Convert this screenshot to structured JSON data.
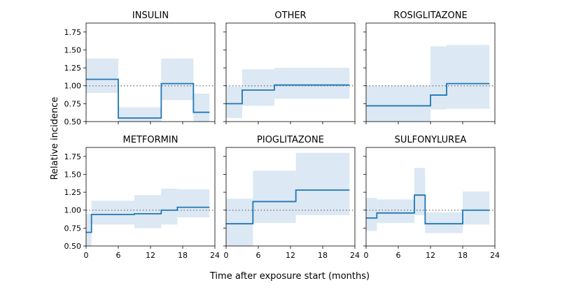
{
  "chart_data": {
    "type": "line",
    "step": true,
    "xlabel": "Time after exposure start (months)",
    "ylabel": "Relative incidence",
    "xlim": [
      0,
      24
    ],
    "ylim": [
      0.5,
      1.875
    ],
    "xticks": [
      0,
      6,
      12,
      18,
      24
    ],
    "xtick_labels": [
      "0",
      "6",
      "12",
      "18",
      "24"
    ],
    "yticks": [
      0.5,
      0.75,
      1.0,
      1.25,
      1.5,
      1.75
    ],
    "ytick_labels": [
      "0.50",
      "0.75",
      "1.00",
      "1.25",
      "1.50",
      "1.75"
    ],
    "reference_line": 1.0,
    "line_color": "#1f77b4",
    "band_color": "#dce8f4",
    "reference_color": "#808080",
    "panels": [
      {
        "title": "INSULIN",
        "segments": [
          {
            "x0": 0,
            "x1": 6,
            "value": 1.09,
            "lo": 0.9,
            "hi": 1.38
          },
          {
            "x0": 6,
            "x1": 14,
            "value": 0.55,
            "lo": 0.5,
            "hi": 0.7
          },
          {
            "x0": 14,
            "x1": 16,
            "value": 1.03,
            "lo": 0.8,
            "hi": 1.38
          },
          {
            "x0": 16,
            "x1": 20,
            "value": 1.03,
            "lo": 0.8,
            "hi": 1.38
          },
          {
            "x0": 20,
            "x1": 23,
            "value": 0.63,
            "lo": 0.5,
            "hi": 0.89
          }
        ]
      },
      {
        "title": "OTHER",
        "segments": [
          {
            "x0": 0,
            "x1": 3,
            "value": 0.75,
            "lo": 0.55,
            "hi": 0.99
          },
          {
            "x0": 3,
            "x1": 9,
            "value": 0.94,
            "lo": 0.72,
            "hi": 1.23
          },
          {
            "x0": 9,
            "x1": 23,
            "value": 1.01,
            "lo": 0.82,
            "hi": 1.25
          }
        ]
      },
      {
        "title": "ROSIGLITAZONE",
        "segments": [
          {
            "x0": 0,
            "x1": 12,
            "value": 0.72,
            "lo": 0.5,
            "hi": 1.0
          },
          {
            "x0": 12,
            "x1": 15,
            "value": 0.87,
            "lo": 0.67,
            "hi": 1.55
          },
          {
            "x0": 15,
            "x1": 23,
            "value": 1.03,
            "lo": 0.68,
            "hi": 1.57
          }
        ]
      },
      {
        "title": "METFORMIN",
        "segments": [
          {
            "x0": 0,
            "x1": 1,
            "value": 0.69,
            "lo": 0.5,
            "hi": 0.95
          },
          {
            "x0": 1,
            "x1": 9,
            "value": 0.94,
            "lo": 0.8,
            "hi": 1.13
          },
          {
            "x0": 9,
            "x1": 14,
            "value": 0.95,
            "lo": 0.75,
            "hi": 1.21
          },
          {
            "x0": 14,
            "x1": 17,
            "value": 1.0,
            "lo": 0.8,
            "hi": 1.3
          },
          {
            "x0": 17,
            "x1": 23,
            "value": 1.04,
            "lo": 0.9,
            "hi": 1.29
          }
        ]
      },
      {
        "title": "PIOGLITAZONE",
        "segments": [
          {
            "x0": 0,
            "x1": 5,
            "value": 0.81,
            "lo": 0.5,
            "hi": 1.16
          },
          {
            "x0": 5,
            "x1": 13,
            "value": 1.12,
            "lo": 0.82,
            "hi": 1.55
          },
          {
            "x0": 13,
            "x1": 23,
            "value": 1.28,
            "lo": 0.93,
            "hi": 1.8
          }
        ]
      },
      {
        "title": "SULFONYLUREA",
        "segments": [
          {
            "x0": 0,
            "x1": 2,
            "value": 0.89,
            "lo": 0.71,
            "hi": 1.17
          },
          {
            "x0": 2,
            "x1": 9,
            "value": 0.96,
            "lo": 0.82,
            "hi": 1.15
          },
          {
            "x0": 9,
            "x1": 11,
            "value": 1.21,
            "lo": 0.93,
            "hi": 1.59
          },
          {
            "x0": 11,
            "x1": 18,
            "value": 0.81,
            "lo": 0.68,
            "hi": 0.97
          },
          {
            "x0": 18,
            "x1": 23,
            "value": 1.0,
            "lo": 0.8,
            "hi": 1.26
          }
        ]
      }
    ]
  }
}
